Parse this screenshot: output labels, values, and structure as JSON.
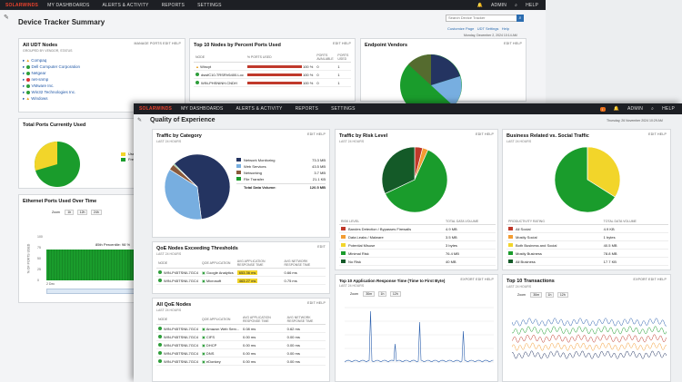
{
  "back": {
    "brand": "SOLARWINDS",
    "nav": [
      "MY DASHBOARDS",
      "ALERTS & ACTIVITY",
      "REPORTS",
      "SETTINGS"
    ],
    "user": "ADMIN",
    "help": "HELP",
    "title": "Device Tracker Summary",
    "search_placeholder": "Search Device Tracker",
    "links": [
      "Customize Page",
      "UDT Settings",
      "Help"
    ],
    "date": "Monday, December 2, 2024 10:14 AM",
    "all_nodes": {
      "title": "All UDT Nodes",
      "subtitle": "GROUPED BY VENDOR, STATUS",
      "links": "MANAGE PORTS  EDIT  HELP",
      "vendors": [
        "Compaq",
        "Dell Computer Corporation",
        "Netgear",
        "net-snmp",
        "VMware Inc.",
        "Win32 Technologies Inc.",
        "Windows"
      ]
    },
    "top10": {
      "title": "Top 10 Nodes by Percent Ports Used",
      "links": "EDIT  HELP",
      "headers": [
        "NODE",
        "% PORTS USED",
        "PORTS AVAILABLE",
        "PORTS USED"
      ],
      "rows": [
        {
          "node": "Wincyt",
          "pct": "100 %",
          "avail": "0",
          "used": "1"
        },
        {
          "node": "dswfC10-TRSRV6400.Loc",
          "pct": "100 %",
          "avail": "0",
          "used": "1"
        },
        {
          "node": "WIN-PHSNINH.CNDH",
          "pct": "100 %",
          "avail": "0",
          "used": "1"
        }
      ]
    },
    "endpoint": {
      "title": "Endpoint Vendors",
      "links": "EDIT  HELP"
    },
    "total_ports": {
      "title": "Total Ports Currently Used",
      "links": "EDIT  HELP",
      "legend": [
        "Used",
        "Free"
      ]
    },
    "ethernet": {
      "title": "Ethernet Ports Used Over Time",
      "zoom_label": "Zoom",
      "zoom": [
        "1h",
        "12h",
        "24h"
      ],
      "annotation": "85th Percentile: 98 %",
      "ylabel": "% OF PORTS USED",
      "y_ticks": [
        "100",
        "75",
        "50",
        "25",
        "0"
      ],
      "x_ticks": [
        "2 Dec",
        "04:00 PM"
      ]
    }
  },
  "front": {
    "brand": "SOLARWINDS",
    "nav": [
      "MY DASHBOARDS",
      "ALERTS & ACTIVITY",
      "REPORTS",
      "SETTINGS"
    ],
    "user": "ADMIN",
    "help": "HELP",
    "title": "Quality of Experience",
    "date": "Thursday, 26 November 2024 10:29 AM",
    "traffic_category": {
      "title": "Traffic by Category",
      "subtitle": "LAST 24 HOURS",
      "links": "EDIT  HELP",
      "legend": [
        {
          "label": "Network Monitoring",
          "value": "73.3 MB"
        },
        {
          "label": "Web Services",
          "value": "43.5 MB"
        },
        {
          "label": "Networking",
          "value": "3.7 MB"
        },
        {
          "label": "File Transfer",
          "value": "21.1 KB"
        }
      ],
      "total_label": "Total Data Volume:",
      "total_value": "120.5 MB"
    },
    "traffic_risk": {
      "title": "Traffic by Risk Level",
      "subtitle": "LAST 24 HOURS",
      "links": "EDIT  HELP",
      "headers": [
        "RISK LEVEL",
        "TOTAL DATA VOLUME"
      ],
      "rows": [
        {
          "label": "Bandes Detection / Bypasses Firewalls",
          "value": "4.9 MB"
        },
        {
          "label": "Data Leaks / Malware",
          "value": "3.5 MB"
        },
        {
          "label": "Potential Misuse",
          "value": "3 bytes"
        },
        {
          "label": "Minimal Risk",
          "value": "76.4 MB"
        },
        {
          "label": "No Risk",
          "value": "40 MB"
        }
      ]
    },
    "business": {
      "title": "Business Related vs. Social Traffic",
      "subtitle": "LAST 24 HOURS",
      "links": "EDIT  HELP",
      "headers": [
        "PRODUCTIVITY RATING",
        "TOTAL DATA VOLUME"
      ],
      "rows": [
        {
          "label": "All Social",
          "value": "4.9 KB"
        },
        {
          "label": "Mostly Social",
          "value": "1 bytes"
        },
        {
          "label": "Both Business and Social",
          "value": "40.5 MB"
        },
        {
          "label": "Mostly Business",
          "value": "78.8 MB"
        },
        {
          "label": "All Business",
          "value": "17.7 KB"
        }
      ]
    },
    "qoe_thresholds": {
      "title": "QoE Nodes Exceeding Thresholds",
      "subtitle": "LAST 24 HOURS",
      "links": "EDIT",
      "headers": [
        "NODE",
        "QOE APPLICATION",
        "AVG APPLICATION RESPONSE TIME",
        "AVG NETWORK RESPONSE TIME"
      ],
      "rows": [
        {
          "node": "WIN-P45TSNIL7GC4",
          "app": "Google Analytics",
          "art": "653.36 ms",
          "nrt": "0.66 ms"
        },
        {
          "node": "WIN-P45TSNIL7GC4",
          "app": "Microsoft",
          "art": "463.27 ms",
          "nrt": "0.75 ms"
        }
      ]
    },
    "all_qoe": {
      "title": "All QoE Nodes",
      "subtitle": "LAST 24 HOURS",
      "links": "EDIT  HELP",
      "headers": [
        "NODE",
        "QOE APPLICATION",
        "AVG APPLICATION RESPONSE TIME",
        "AVG NETWORK RESPONSE TIME"
      ],
      "rows": [
        {
          "node": "WIN-P45TSNIL7GC4",
          "app": "Amazon Web Serv...",
          "art": "0.08 ms",
          "nrt": "0.62 ms"
        },
        {
          "node": "WIN-P45TSNIL7GC4",
          "app": "CIFS",
          "art": "0.00 ms",
          "nrt": "0.00 ms"
        },
        {
          "node": "WIN-P45TSNIL7GC4",
          "app": "DHCP",
          "art": "0.00 ms",
          "nrt": "0.00 ms"
        },
        {
          "node": "WIN-P45TSNIL7GC4",
          "app": "DNS",
          "art": "0.00 ms",
          "nrt": "0.00 ms"
        },
        {
          "node": "WIN-P45TSNIL7GC4",
          "app": "eDonkey",
          "art": "0.00 ms",
          "nrt": "0.00 ms"
        }
      ]
    },
    "response_time": {
      "title": "Top 10 Application Response Time (Time to First Byte)",
      "subtitle": "LAST 24 HOURS",
      "links": "EXPORT  EDIT  HELP",
      "zoom_label": "Zoom",
      "zoom": [
        "30m",
        "1h",
        "12h"
      ]
    },
    "transactions": {
      "title": "Top 10 Transactions",
      "subtitle": "LAST 24 HOURS",
      "links": "EXPORT  EDIT  HELP",
      "zoom_label": "Zoom",
      "zoom": [
        "30m",
        "1h",
        "12h"
      ]
    }
  },
  "colors": {
    "green": "#1a9c2c",
    "navy": "#243461",
    "light_blue": "#77aee0",
    "brown": "#8a5a3c",
    "yellow": "#f2d52a",
    "orange": "#f39c32",
    "red_bar": "#c0392b",
    "dark_green": "#145a28"
  },
  "chart_data": [
    {
      "type": "pie",
      "name_hidden": true,
      "categories": [
        "Network Monitoring",
        "Web Services",
        "Networking",
        "File Transfer"
      ],
      "values": [
        73.3,
        43.5,
        3.7,
        0.02
      ]
    },
    {
      "type": "pie",
      "categories": [
        "Bandes Detection / Bypasses Firewalls",
        "Data Leaks / Malware",
        "Potential Misuse",
        "Minimal Risk",
        "No Risk"
      ],
      "values": [
        4.9,
        3.5,
        0.0,
        76.4,
        40
      ]
    },
    {
      "type": "pie",
      "categories": [
        "All Social",
        "Mostly Social",
        "Both Business and Social",
        "Mostly Business",
        "All Business"
      ],
      "values": [
        0.005,
        0.0,
        40.5,
        78.8,
        0.02
      ]
    }
  ]
}
